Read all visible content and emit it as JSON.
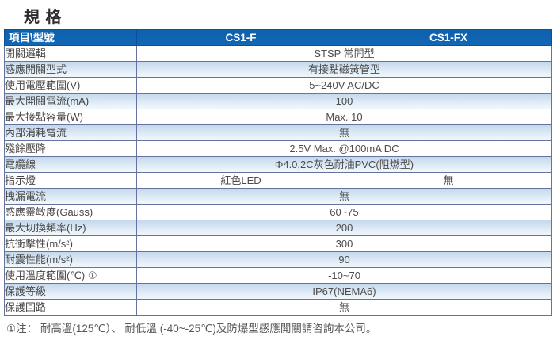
{
  "page": {
    "title": "規 格"
  },
  "colors": {
    "header_blue": "#1062b0",
    "row_alt_blue": "#c4d8ec",
    "border_navy": "#66739f",
    "text_gray": "#4c4c4c"
  },
  "table": {
    "header": {
      "col_item": "項目\\型號",
      "col_model_1": "CS1-F",
      "col_model_2": "CS1-FX"
    },
    "rows": [
      {
        "label": "開關邏輯",
        "value": "STSP 常開型"
      },
      {
        "label": "感應開關型式",
        "value": "有接點磁簧管型"
      },
      {
        "label": "使用電壓範圍(V)",
        "value": "5~240V AC/DC"
      },
      {
        "label": "最大開關電流(mA)",
        "value": "100"
      },
      {
        "label": "最大接點容量(W)",
        "value": "Max. 10"
      },
      {
        "label": "內部消耗電流",
        "value": "無"
      },
      {
        "label": "殘餘壓降",
        "value": "2.5V Max. @100mA DC"
      },
      {
        "label": "電纜線",
        "value": "Φ4.0,2C灰色耐油PVC(阻燃型)"
      },
      {
        "label": "指示燈",
        "value_cs1f": "紅色LED",
        "value_cs1fx": "無"
      },
      {
        "label": "拽漏電流",
        "value": "無"
      },
      {
        "label": "感應靈敏度(Gauss)",
        "value": "60~75"
      },
      {
        "label": "最大切換頻率(Hz)",
        "value": "200"
      },
      {
        "label": "抗衝擊性(m/s²)",
        "value": "300"
      },
      {
        "label": "耐震性能(m/s²)",
        "value": "90"
      },
      {
        "label": "使用溫度範圍(℃) ①",
        "value": "-10~70"
      },
      {
        "label": "保護等級",
        "value": "IP67(NEMA6)"
      },
      {
        "label": "保護回路",
        "value": "無"
      }
    ]
  },
  "footnote": "①注： 耐高溫(125℃）、 耐低溫 (-40~-25℃)及防爆型感應開關請咨詢本公司。"
}
